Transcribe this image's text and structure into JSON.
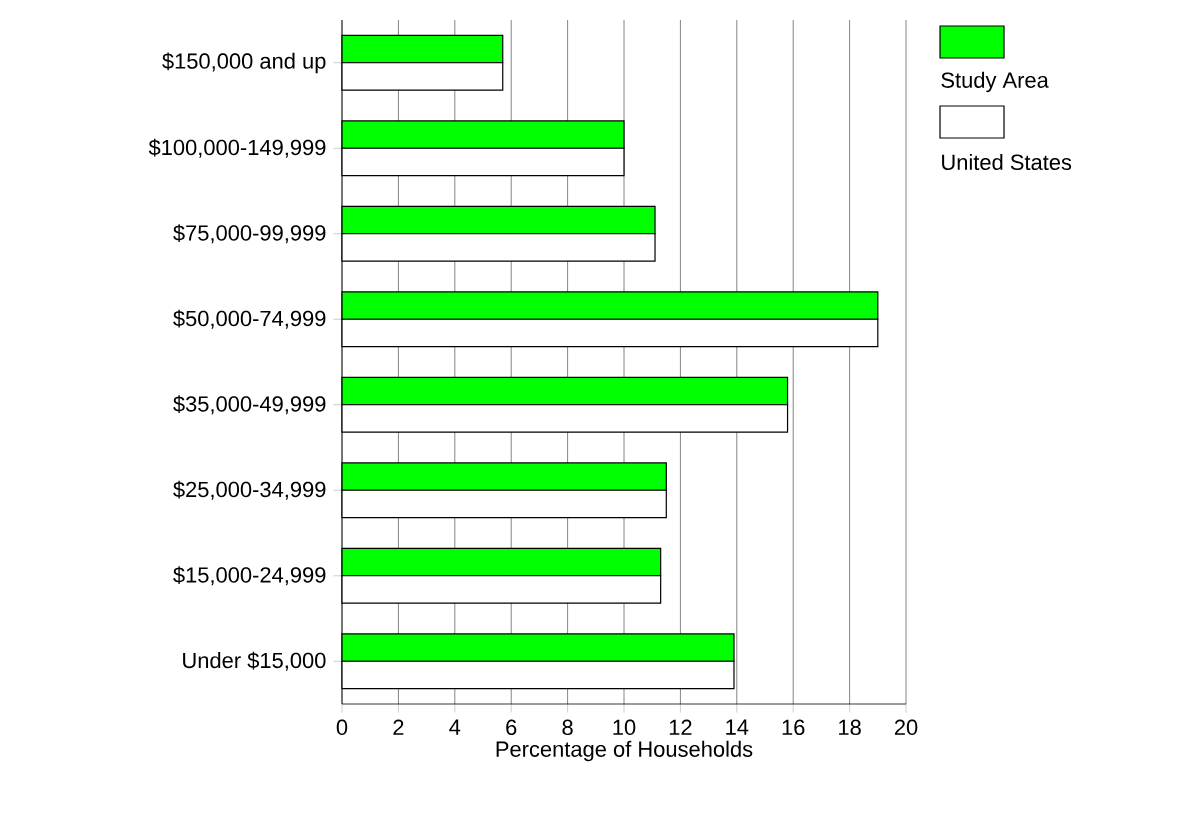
{
  "chart_data": {
    "type": "bar",
    "orientation": "horizontal",
    "xlabel": "Percentage of Households",
    "categories": [
      "$150,000 and up",
      "$100,000-149,999",
      "$75,000-99,999",
      "$50,000-74,999",
      "$35,000-49,999",
      "$25,000-34,999",
      "$15,000-24,999",
      "Under $15,000"
    ],
    "series": [
      {
        "name": "Study Area",
        "color": "#00ff00",
        "values": [
          5.7,
          10.0,
          11.1,
          19.0,
          15.8,
          11.5,
          11.3,
          13.9
        ]
      },
      {
        "name": "United States",
        "color": "#ffffff",
        "values": [
          5.7,
          10.0,
          11.1,
          19.0,
          15.8,
          11.5,
          11.3,
          13.9
        ]
      }
    ],
    "xlim": [
      0,
      20
    ],
    "xticks": [
      0,
      2,
      4,
      6,
      8,
      10,
      12,
      14,
      16,
      18,
      20
    ],
    "grid": "x",
    "legend": "top right"
  }
}
